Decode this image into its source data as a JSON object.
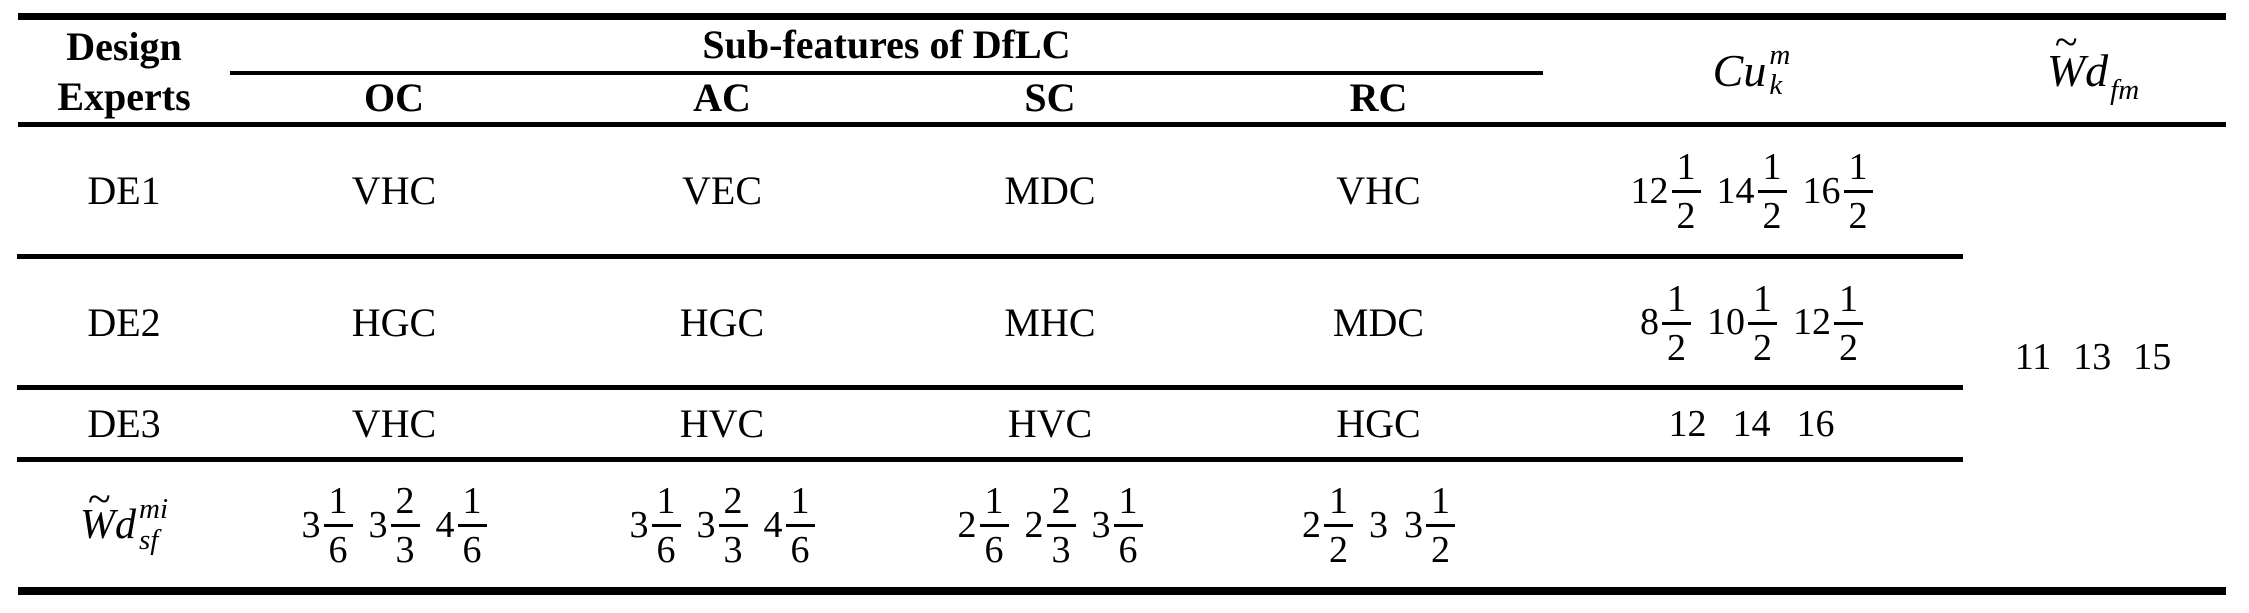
{
  "colors": {
    "text": "#000000",
    "background": "#ffffff",
    "rule": "#000000"
  },
  "table": {
    "header": {
      "design_line1": "Design",
      "design_line2": "Experts",
      "group_label": "Sub-features of DfLC",
      "sub_cols": [
        "OC",
        "AC",
        "SC",
        "RC"
      ],
      "cu": {
        "base": "Cu",
        "sup": "m",
        "sub": "k"
      },
      "wd": {
        "tilde": "~",
        "base": "Wd",
        "sub": "fm"
      }
    },
    "rows": [
      {
        "label": "DE1",
        "oc": "VHC",
        "ac": "VEC",
        "sc": "MDC",
        "rc": "VHC",
        "cu": [
          {
            "w": "12",
            "n": "1",
            "d": "2"
          },
          {
            "w": "14",
            "n": "1",
            "d": "2"
          },
          {
            "w": "16",
            "n": "1",
            "d": "2"
          }
        ]
      },
      {
        "label": "DE2",
        "oc": "HGC",
        "ac": "HGC",
        "sc": "MHC",
        "rc": "MDC",
        "cu": [
          {
            "w": "8",
            "n": "1",
            "d": "2"
          },
          {
            "w": "10",
            "n": "1",
            "d": "2"
          },
          {
            "w": "12",
            "n": "1",
            "d": "2"
          }
        ]
      },
      {
        "label": "DE3",
        "oc": "VHC",
        "ac": "HVC",
        "sc": "HVC",
        "rc": "HGC",
        "cu": [
          {
            "w": "12"
          },
          {
            "w": "14"
          },
          {
            "w": "16"
          }
        ]
      }
    ],
    "wd_values": [
      {
        "w": "11"
      },
      {
        "w": "13"
      },
      {
        "w": "15"
      }
    ],
    "footer": {
      "label": {
        "tilde": "~",
        "base": "Wd",
        "sup": "mi",
        "sub": "sf"
      },
      "oc": [
        {
          "w": "3",
          "n": "1",
          "d": "6"
        },
        {
          "w": "3",
          "n": "2",
          "d": "3"
        },
        {
          "w": "4",
          "n": "1",
          "d": "6"
        }
      ],
      "ac": [
        {
          "w": "3",
          "n": "1",
          "d": "6"
        },
        {
          "w": "3",
          "n": "2",
          "d": "3"
        },
        {
          "w": "4",
          "n": "1",
          "d": "6"
        }
      ],
      "sc": [
        {
          "w": "2",
          "n": "1",
          "d": "6"
        },
        {
          "w": "2",
          "n": "2",
          "d": "3"
        },
        {
          "w": "3",
          "n": "1",
          "d": "6"
        }
      ],
      "rc": [
        {
          "w": "2",
          "n": "1",
          "d": "2"
        },
        {
          "w": "3"
        },
        {
          "w": "3",
          "n": "1",
          "d": "2"
        }
      ]
    }
  }
}
